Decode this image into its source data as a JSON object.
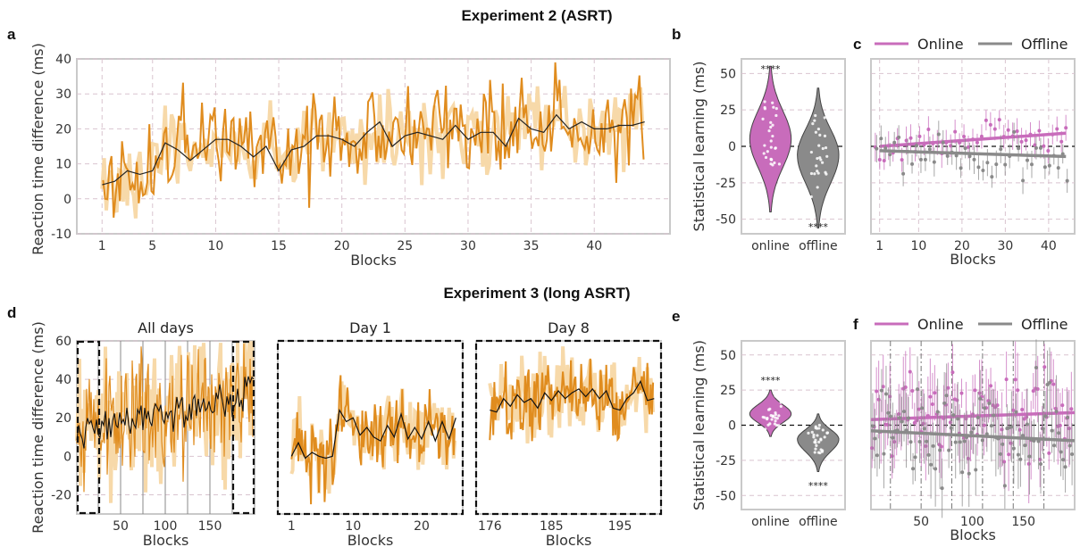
{
  "figure": {
    "title_top": "Experiment 2 (ASRT)",
    "title_bottom": "Experiment 3 (long ASRT)"
  },
  "colors": {
    "orange": "#e08c1e",
    "orange_light": "#f7d9a9",
    "online": "#c86cbb",
    "offline": "#8a8a8a",
    "grid": "#d9c4cf"
  },
  "chart_data": [
    {
      "id": "a",
      "type": "line",
      "panel_label": "a",
      "xlabel": "Blocks",
      "ylabel": "Reaction time difference (ms)",
      "xlim": [
        -1,
        46
      ],
      "ylim": [
        -10,
        40
      ],
      "x_ticks": [
        1,
        5,
        10,
        15,
        20,
        25,
        30,
        35,
        40
      ],
      "y_ticks": [
        -10,
        0,
        10,
        20,
        30,
        40
      ],
      "grid": true,
      "series": [
        {
          "role": "block_mean",
          "x": [
            1,
            2,
            3,
            4,
            5,
            6,
            7,
            8,
            9,
            10,
            11,
            12,
            13,
            14,
            15,
            16,
            17,
            18,
            19,
            20,
            21,
            22,
            23,
            24,
            25,
            26,
            27,
            28,
            29,
            30,
            31,
            32,
            33,
            34,
            35,
            36,
            37,
            38,
            39,
            40,
            41,
            42,
            43,
            44
          ],
          "values": [
            4,
            5,
            8,
            7,
            8,
            16,
            14,
            11,
            14,
            17,
            17,
            15,
            12,
            15,
            8,
            14,
            15,
            18,
            18,
            17,
            15,
            19,
            22,
            15,
            18,
            19,
            18,
            17,
            21,
            17,
            19,
            19,
            15,
            23,
            20,
            19,
            24,
            20,
            22,
            20,
            20,
            21,
            21,
            22
          ]
        }
      ]
    },
    {
      "id": "b",
      "type": "violin",
      "panel_label": "b",
      "ylabel": "Statistical learning (ms)",
      "categories": [
        "online",
        "offline"
      ],
      "ylim": [
        -60,
        60
      ],
      "y_ticks": [
        -50,
        -25,
        0,
        25,
        50
      ],
      "means": [
        5,
        -6
      ],
      "ranges": [
        [
          -45,
          55
        ],
        [
          -56,
          40
        ]
      ],
      "significance": [
        "****",
        "****"
      ]
    },
    {
      "id": "c",
      "type": "scatter",
      "panel_label": "c",
      "xlabel": "Blocks",
      "xlim": [
        -1,
        46
      ],
      "ylim": [
        -60,
        60
      ],
      "x_ticks": [
        1,
        10,
        20,
        30,
        40
      ],
      "y_ticks": [
        -50,
        -25,
        0,
        25,
        50
      ],
      "legend": [
        "Online",
        "Offline"
      ],
      "legend_position": "top",
      "series": [
        {
          "name": "Online",
          "trend": [
            [
              1,
              0
            ],
            [
              44,
              9
            ]
          ]
        },
        {
          "name": "Offline",
          "trend": [
            [
              1,
              -3
            ],
            [
              44,
              -7
            ]
          ]
        }
      ]
    },
    {
      "id": "d1",
      "type": "line",
      "panel_label": "d",
      "subtitle": "All days",
      "xlabel": "Blocks",
      "ylabel": "Reaction time difference (ms)",
      "xlim": [
        1,
        200
      ],
      "ylim": [
        -30,
        60
      ],
      "x_ticks": [
        50,
        100,
        150
      ],
      "y_ticks": [
        -20,
        0,
        20,
        40,
        60
      ],
      "trend": [
        [
          1,
          12
        ],
        [
          200,
          32
        ]
      ]
    },
    {
      "id": "d2",
      "type": "line",
      "subtitle": "Day 1",
      "xlabel": "Blocks",
      "xlim": [
        -1,
        26
      ],
      "ylim": [
        -30,
        60
      ],
      "x_ticks": [
        1,
        10,
        20
      ],
      "series": [
        {
          "role": "block_mean",
          "x": [
            1,
            2,
            3,
            4,
            5,
            6,
            7,
            8,
            9,
            10,
            11,
            12,
            13,
            14,
            15,
            16,
            17,
            18,
            19,
            20,
            21,
            22,
            23,
            24,
            25
          ],
          "values": [
            0,
            7,
            -1,
            2,
            0,
            -1,
            0,
            24,
            18,
            20,
            11,
            15,
            10,
            8,
            16,
            10,
            22,
            9,
            15,
            9,
            18,
            8,
            18,
            9,
            20
          ]
        }
      ]
    },
    {
      "id": "d3",
      "type": "line",
      "subtitle": "Day 8",
      "xlabel": "Blocks",
      "xlim": [
        174,
        201
      ],
      "ylim": [
        -30,
        60
      ],
      "x_ticks": [
        176,
        185,
        195
      ],
      "series": [
        {
          "role": "block_mean",
          "x": [
            176,
            177,
            178,
            179,
            180,
            181,
            182,
            183,
            184,
            185,
            186,
            187,
            188,
            189,
            190,
            191,
            192,
            193,
            194,
            195,
            196,
            197,
            198,
            199,
            200
          ],
          "values": [
            24,
            23,
            30,
            26,
            32,
            28,
            30,
            25,
            33,
            29,
            34,
            30,
            33,
            35,
            31,
            35,
            30,
            34,
            25,
            24,
            30,
            33,
            39,
            29,
            30
          ]
        }
      ]
    },
    {
      "id": "e",
      "type": "violin",
      "panel_label": "e",
      "ylabel": "Statistical learning (ms)",
      "categories": [
        "online",
        "offline"
      ],
      "ylim": [
        -60,
        60
      ],
      "y_ticks": [
        -50,
        -25,
        0,
        25,
        50
      ],
      "means": [
        8,
        -10
      ],
      "ranges": [
        [
          -8,
          25
        ],
        [
          -33,
          8
        ]
      ],
      "significance": [
        "****",
        "****"
      ]
    },
    {
      "id": "f",
      "type": "scatter",
      "panel_label": "f",
      "xlabel": "Blocks",
      "xlim": [
        1,
        200
      ],
      "ylim": [
        -60,
        60
      ],
      "x_ticks": [
        50,
        100,
        150
      ],
      "y_ticks": [
        -50,
        -25,
        0,
        25,
        50
      ],
      "legend": [
        "Online",
        "Offline"
      ],
      "legend_position": "top",
      "series": [
        {
          "name": "Online",
          "trend": [
            [
              1,
              4
            ],
            [
              200,
              9
            ]
          ]
        },
        {
          "name": "Offline",
          "trend": [
            [
              1,
              -4
            ],
            [
              200,
              -11
            ]
          ]
        }
      ]
    }
  ]
}
